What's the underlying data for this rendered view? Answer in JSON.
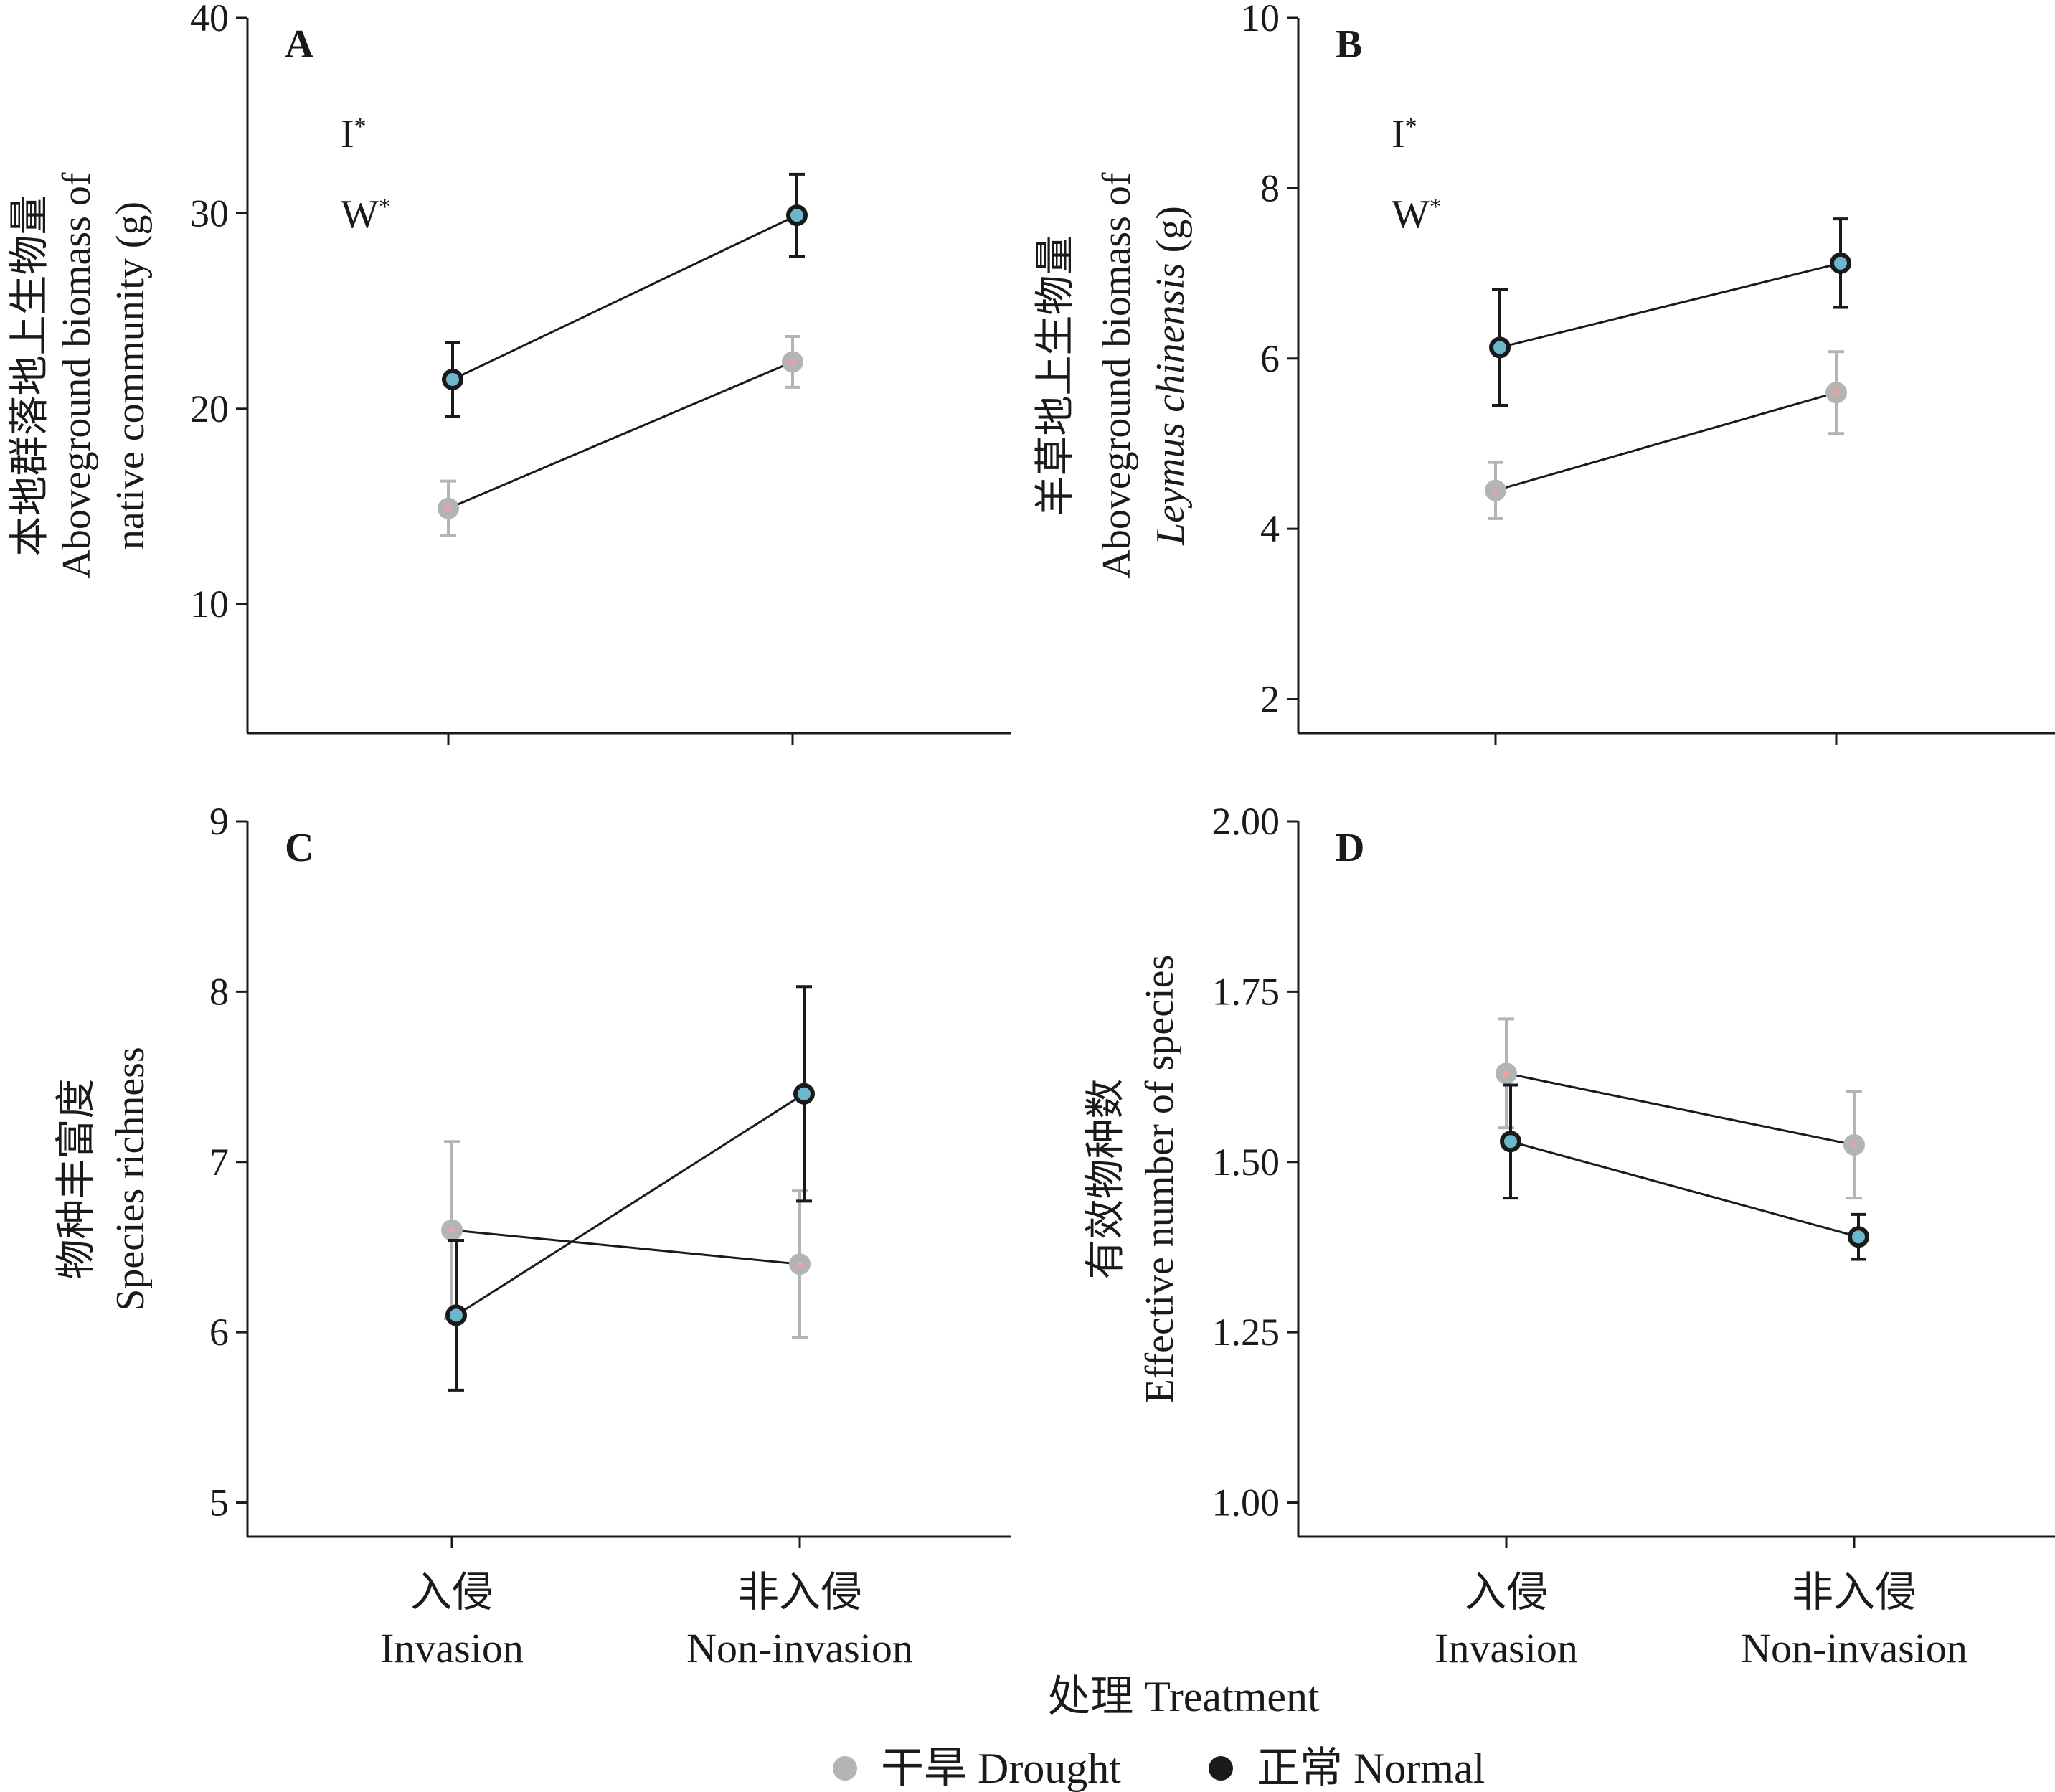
{
  "x_title": "处理 Treatment",
  "legend": [
    {
      "label": "干旱 Drought",
      "color": "#b4b4b4",
      "key": "drought"
    },
    {
      "label": "正常 Normal",
      "color": "#1a1a1a",
      "key": "normal"
    }
  ],
  "chart_data": [
    {
      "type": "line",
      "panel": "A",
      "ylabel_lines": [
        {
          "text": "本地群落地上生物量"
        },
        {
          "text": "Aboveground biomass of"
        },
        {
          "text": "native community (g)"
        }
      ],
      "ylim": [
        3.4,
        40
      ],
      "yticks": [
        10,
        20,
        30,
        40
      ],
      "categories": [
        {
          "cn": "入侵",
          "en": "Invasion"
        },
        {
          "cn": "非入侵",
          "en": "Non-invasion"
        }
      ],
      "annotations": [
        "I*",
        "W*"
      ],
      "series": [
        {
          "key": "normal",
          "values": [
            21.5,
            29.9
          ],
          "errors": [
            1.9,
            2.1
          ]
        },
        {
          "key": "drought",
          "values": [
            14.9,
            22.4
          ],
          "errors": [
            1.4,
            1.3
          ]
        }
      ]
    },
    {
      "type": "line",
      "panel": "B",
      "ylabel_lines": [
        {
          "text": "羊草地上生物量"
        },
        {
          "text": "Aboveground biomass of"
        },
        {
          "text": "Leymus chinensis (g)",
          "italic_part": "Leymus chinensis",
          "plain_part": " (g)"
        }
      ],
      "ylim": [
        1.6,
        10
      ],
      "yticks": [
        2,
        4,
        6,
        8,
        10
      ],
      "categories": [
        {
          "cn": "入侵",
          "en": "Invasion"
        },
        {
          "cn": "非入侵",
          "en": "Non-invasion"
        }
      ],
      "annotations": [
        "I*",
        "W*"
      ],
      "series": [
        {
          "key": "normal",
          "values": [
            6.13,
            7.12
          ],
          "errors": [
            0.68,
            0.52
          ]
        },
        {
          "key": "drought",
          "values": [
            4.45,
            5.6
          ],
          "errors": [
            0.33,
            0.48
          ]
        }
      ]
    },
    {
      "type": "line",
      "panel": "C",
      "ylabel_lines": [
        {
          "text": "物种丰富度"
        },
        {
          "text": "Species richness"
        }
      ],
      "ylim": [
        4.8,
        9
      ],
      "yticks": [
        5,
        6,
        7,
        8,
        9
      ],
      "categories": [
        {
          "cn": "入侵",
          "en": "Invasion"
        },
        {
          "cn": "非入侵",
          "en": "Non-invasion"
        }
      ],
      "annotations": [],
      "series": [
        {
          "key": "drought",
          "values": [
            6.6,
            6.4
          ],
          "errors": [
            0.52,
            0.43
          ]
        },
        {
          "key": "normal",
          "values": [
            6.1,
            7.4
          ],
          "errors": [
            0.44,
            0.63
          ]
        }
      ]
    },
    {
      "type": "line",
      "panel": "D",
      "ylabel_lines": [
        {
          "text": "有效物种数"
        },
        {
          "text": "Effective number of species"
        }
      ],
      "ylim": [
        0.95,
        2.0
      ],
      "yticks": [
        1.0,
        1.25,
        1.5,
        1.75,
        2.0
      ],
      "ytick_labels": [
        "1.00",
        "1.25",
        "1.50",
        "1.75",
        "2.00"
      ],
      "categories": [
        {
          "cn": "入侵",
          "en": "Invasion"
        },
        {
          "cn": "非入侵",
          "en": "Non-invasion"
        }
      ],
      "annotations": [],
      "series": [
        {
          "key": "drought",
          "values": [
            1.63,
            1.525
          ],
          "errors": [
            0.08,
            0.078
          ]
        },
        {
          "key": "normal",
          "values": [
            1.53,
            1.39
          ],
          "errors": [
            0.083,
            0.033
          ]
        }
      ]
    }
  ],
  "colors": {
    "normal_fill": "#6cb7cb",
    "normal_stroke": "#1a1a1a",
    "drought_fill": "#b4b4b4",
    "drought_center": "#f0a0a0",
    "axis": "#1a1a1a",
    "drought_error": "#b4b4b4",
    "normal_error": "#1a1a1a"
  }
}
